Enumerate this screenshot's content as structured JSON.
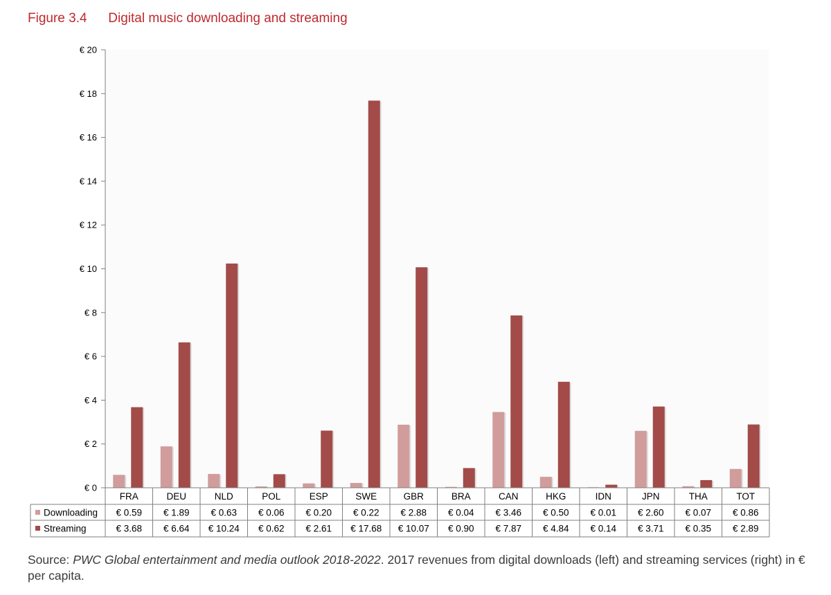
{
  "figure": {
    "number": "Figure 3.4",
    "title": "Digital music downloading and streaming"
  },
  "source": {
    "prefix": "Source: ",
    "title": "PWC Global entertainment and media outlook 2018-2022",
    "text": ". 2017 revenues from digital downloads (left) and streaming services (right) in € per capita."
  },
  "chart_data": {
    "type": "bar",
    "categories": [
      "FRA",
      "DEU",
      "NLD",
      "POL",
      "ESP",
      "SWE",
      "GBR",
      "BRA",
      "CAN",
      "HKG",
      "IDN",
      "JPN",
      "THA",
      "TOT"
    ],
    "series": [
      {
        "name": "Downloading",
        "color": "#d19c9c",
        "values": [
          0.59,
          1.89,
          0.63,
          0.06,
          0.2,
          0.22,
          2.88,
          0.04,
          3.46,
          0.5,
          0.01,
          2.6,
          0.07,
          0.86
        ],
        "labels": [
          "€ 0.59",
          "€ 1.89",
          "€ 0.63",
          "€ 0.06",
          "€ 0.20",
          "€ 0.22",
          "€ 2.88",
          "€ 0.04",
          "€ 3.46",
          "€ 0.50",
          "€ 0.01",
          "€ 2.60",
          "€ 0.07",
          "€ 0.86"
        ]
      },
      {
        "name": "Streaming",
        "color": "#a24b49",
        "values": [
          3.68,
          6.64,
          10.24,
          0.62,
          2.61,
          17.68,
          10.07,
          0.9,
          7.87,
          4.84,
          0.14,
          3.71,
          0.35,
          2.89
        ],
        "labels": [
          "€ 3.68",
          "€ 6.64",
          "€ 10.24",
          "€ 0.62",
          "€ 2.61",
          "€ 17.68",
          "€ 10.07",
          "€ 0.90",
          "€ 7.87",
          "€ 4.84",
          "€ 0.14",
          "€ 3.71",
          "€ 0.35",
          "€ 2.89"
        ]
      }
    ],
    "ylim": [
      0,
      20
    ],
    "yticks": [
      0,
      2,
      4,
      6,
      8,
      10,
      12,
      14,
      16,
      18,
      20
    ],
    "ytick_labels": [
      "€ 0",
      "€ 2",
      "€ 4",
      "€ 6",
      "€ 8",
      "€ 10",
      "€ 12",
      "€ 14",
      "€ 16",
      "€ 18",
      "€ 20"
    ],
    "grid": false,
    "legend": "data-table-below"
  }
}
